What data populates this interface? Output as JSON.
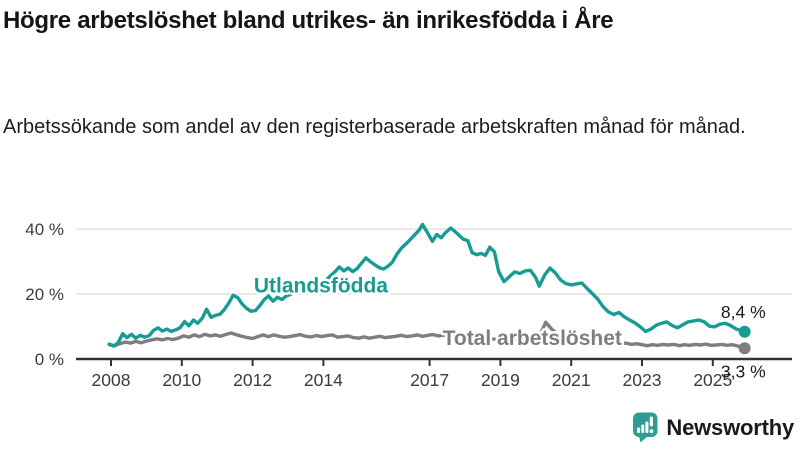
{
  "header": {
    "title": "Högre arbetslöshet bland utrikes- än inrikesfödda i Åre",
    "subtitle": "Arbetssökande som andel av den registerbaserade arbetskraften månad för månad."
  },
  "footer": {
    "brand": "Newsworthy"
  },
  "colors": {
    "accent_teal": "#169C92",
    "line_gray": "#7E7E7E",
    "axis": "#333333",
    "gridline": "#DCDCDC",
    "tick_text": "#3B3B3B",
    "value_text": "#1A1A1A",
    "logo_teal": "#2F9C94"
  },
  "chart_data": {
    "type": "line",
    "title": "Högre arbetslöshet bland utrikes- än inrikesfödda i Åre",
    "subtitle": "Arbetssökande som andel av den registerbaserade arbetskraften månad för månad.",
    "unit": "%",
    "grid": "horizontal",
    "legend_position": "inline-labels-on-chart",
    "xlim": [
      2007.9,
      2026.3
    ],
    "ylim": [
      0,
      44
    ],
    "x_ticks": [
      2008,
      2010,
      2012,
      2014,
      2017,
      2019,
      2021,
      2023,
      2025
    ],
    "y_ticks": [
      {
        "value": 0,
        "label": "0 %"
      },
      {
        "value": 20,
        "label": "20 %"
      },
      {
        "value": 40,
        "label": "40 %"
      }
    ],
    "series": [
      {
        "id": "utlandsfodda",
        "name": "Utlandsfödda",
        "color": "#169C92",
        "end_value": 8.4,
        "end_value_label": "8,4 %",
        "label_pos": {
          "x": 2013.93,
          "y": 20.4
        },
        "points": [
          [
            2007.95,
            4.6
          ],
          [
            2008.08,
            4.0
          ],
          [
            2008.2,
            5.0
          ],
          [
            2008.33,
            7.8
          ],
          [
            2008.45,
            6.6
          ],
          [
            2008.58,
            7.6
          ],
          [
            2008.7,
            6.4
          ],
          [
            2008.83,
            7.3
          ],
          [
            2008.95,
            6.7
          ],
          [
            2009.08,
            7.2
          ],
          [
            2009.2,
            8.8
          ],
          [
            2009.33,
            9.6
          ],
          [
            2009.45,
            8.6
          ],
          [
            2009.58,
            9.2
          ],
          [
            2009.7,
            8.5
          ],
          [
            2009.83,
            9.0
          ],
          [
            2009.95,
            9.6
          ],
          [
            2010.08,
            11.5
          ],
          [
            2010.2,
            10.2
          ],
          [
            2010.33,
            12.0
          ],
          [
            2010.45,
            11.0
          ],
          [
            2010.58,
            12.6
          ],
          [
            2010.7,
            15.3
          ],
          [
            2010.83,
            12.8
          ],
          [
            2010.95,
            13.4
          ],
          [
            2011.08,
            13.8
          ],
          [
            2011.2,
            15.2
          ],
          [
            2011.33,
            17.3
          ],
          [
            2011.45,
            19.6
          ],
          [
            2011.58,
            18.9
          ],
          [
            2011.7,
            17.0
          ],
          [
            2011.83,
            15.6
          ],
          [
            2011.95,
            14.7
          ],
          [
            2012.08,
            14.9
          ],
          [
            2012.2,
            16.4
          ],
          [
            2012.33,
            18.3
          ],
          [
            2012.45,
            19.4
          ],
          [
            2012.58,
            17.8
          ],
          [
            2012.7,
            19.0
          ],
          [
            2012.83,
            18.3
          ],
          [
            2012.95,
            19.4
          ],
          [
            2013.08,
            19.9
          ],
          [
            2013.2,
            21.2
          ],
          [
            2013.33,
            20.3
          ],
          [
            2013.45,
            22.3
          ],
          [
            2013.58,
            21.5
          ],
          [
            2013.7,
            22.8
          ],
          [
            2013.83,
            22.1
          ],
          [
            2013.95,
            23.3
          ],
          [
            2014.08,
            24.3
          ],
          [
            2014.2,
            25.6
          ],
          [
            2014.33,
            26.9
          ],
          [
            2014.45,
            28.3
          ],
          [
            2014.58,
            27.1
          ],
          [
            2014.7,
            28.0
          ],
          [
            2014.83,
            26.9
          ],
          [
            2014.95,
            27.8
          ],
          [
            2015.08,
            29.5
          ],
          [
            2015.2,
            31.1
          ],
          [
            2015.33,
            29.9
          ],
          [
            2015.45,
            29.0
          ],
          [
            2015.58,
            28.1
          ],
          [
            2015.7,
            27.7
          ],
          [
            2015.83,
            28.6
          ],
          [
            2015.95,
            29.8
          ],
          [
            2016.08,
            32.3
          ],
          [
            2016.2,
            34.1
          ],
          [
            2016.33,
            35.4
          ],
          [
            2016.45,
            36.7
          ],
          [
            2016.58,
            38.2
          ],
          [
            2016.7,
            39.6
          ],
          [
            2016.8,
            41.4
          ],
          [
            2016.95,
            38.7
          ],
          [
            2017.08,
            36.2
          ],
          [
            2017.2,
            38.3
          ],
          [
            2017.33,
            37.3
          ],
          [
            2017.45,
            38.9
          ],
          [
            2017.6,
            40.3
          ],
          [
            2017.7,
            39.4
          ],
          [
            2017.83,
            38.1
          ],
          [
            2017.95,
            36.9
          ],
          [
            2018.08,
            36.4
          ],
          [
            2018.2,
            32.7
          ],
          [
            2018.33,
            32.1
          ],
          [
            2018.45,
            32.5
          ],
          [
            2018.58,
            31.9
          ],
          [
            2018.7,
            34.4
          ],
          [
            2018.83,
            33.0
          ],
          [
            2018.95,
            27.0
          ],
          [
            2019.1,
            23.8
          ],
          [
            2019.25,
            25.3
          ],
          [
            2019.4,
            26.8
          ],
          [
            2019.55,
            26.3
          ],
          [
            2019.7,
            27.1
          ],
          [
            2019.85,
            27.3
          ],
          [
            2020.0,
            25.0
          ],
          [
            2020.1,
            22.4
          ],
          [
            2020.25,
            25.8
          ],
          [
            2020.4,
            28.0
          ],
          [
            2020.55,
            26.5
          ],
          [
            2020.7,
            24.3
          ],
          [
            2020.85,
            23.2
          ],
          [
            2021.0,
            22.8
          ],
          [
            2021.15,
            23.1
          ],
          [
            2021.3,
            23.4
          ],
          [
            2021.45,
            21.7
          ],
          [
            2021.6,
            20.1
          ],
          [
            2021.75,
            18.4
          ],
          [
            2021.9,
            16.1
          ],
          [
            2022.05,
            14.5
          ],
          [
            2022.2,
            13.7
          ],
          [
            2022.35,
            14.3
          ],
          [
            2022.5,
            13.0
          ],
          [
            2022.65,
            12.0
          ],
          [
            2022.8,
            11.1
          ],
          [
            2022.95,
            9.9
          ],
          [
            2023.1,
            8.5
          ],
          [
            2023.25,
            9.2
          ],
          [
            2023.4,
            10.4
          ],
          [
            2023.55,
            11.0
          ],
          [
            2023.7,
            11.4
          ],
          [
            2023.85,
            10.3
          ],
          [
            2024.0,
            9.6
          ],
          [
            2024.15,
            10.5
          ],
          [
            2024.3,
            11.4
          ],
          [
            2024.45,
            11.7
          ],
          [
            2024.6,
            12.0
          ],
          [
            2024.75,
            11.5
          ],
          [
            2024.9,
            10.1
          ],
          [
            2025.05,
            9.9
          ],
          [
            2025.2,
            10.7
          ],
          [
            2025.35,
            11.0
          ],
          [
            2025.5,
            10.3
          ],
          [
            2025.65,
            9.3
          ],
          [
            2025.78,
            8.8
          ],
          [
            2025.9,
            8.4
          ]
        ]
      },
      {
        "id": "total",
        "name": "Total arbetslöshet",
        "color": "#7E7E7E",
        "end_value": 3.3,
        "end_value_label": "3,3 %",
        "label_pos": {
          "x": 2019.9,
          "y": 4.3
        },
        "points": [
          [
            2007.95,
            4.4
          ],
          [
            2008.1,
            4.1
          ],
          [
            2008.25,
            4.7
          ],
          [
            2008.4,
            5.2
          ],
          [
            2008.55,
            4.9
          ],
          [
            2008.7,
            5.4
          ],
          [
            2008.85,
            5.0
          ],
          [
            2009.0,
            5.5
          ],
          [
            2009.15,
            5.9
          ],
          [
            2009.3,
            6.2
          ],
          [
            2009.45,
            5.9
          ],
          [
            2009.6,
            6.3
          ],
          [
            2009.75,
            6.0
          ],
          [
            2009.9,
            6.4
          ],
          [
            2010.05,
            7.1
          ],
          [
            2010.2,
            6.7
          ],
          [
            2010.35,
            7.4
          ],
          [
            2010.5,
            6.9
          ],
          [
            2010.65,
            7.6
          ],
          [
            2010.8,
            7.1
          ],
          [
            2010.95,
            7.4
          ],
          [
            2011.1,
            7.0
          ],
          [
            2011.25,
            7.6
          ],
          [
            2011.4,
            8.0
          ],
          [
            2011.55,
            7.4
          ],
          [
            2011.7,
            7.0
          ],
          [
            2011.85,
            6.6
          ],
          [
            2012.0,
            6.3
          ],
          [
            2012.15,
            6.9
          ],
          [
            2012.3,
            7.4
          ],
          [
            2012.45,
            6.9
          ],
          [
            2012.6,
            7.4
          ],
          [
            2012.75,
            7.0
          ],
          [
            2012.9,
            6.7
          ],
          [
            2013.05,
            6.9
          ],
          [
            2013.2,
            7.2
          ],
          [
            2013.35,
            7.5
          ],
          [
            2013.5,
            7.0
          ],
          [
            2013.65,
            6.8
          ],
          [
            2013.8,
            7.2
          ],
          [
            2013.95,
            6.9
          ],
          [
            2014.1,
            7.2
          ],
          [
            2014.25,
            7.4
          ],
          [
            2014.4,
            6.7
          ],
          [
            2014.55,
            6.9
          ],
          [
            2014.7,
            7.1
          ],
          [
            2014.85,
            6.6
          ],
          [
            2015.0,
            6.4
          ],
          [
            2015.15,
            6.8
          ],
          [
            2015.3,
            6.4
          ],
          [
            2015.45,
            6.7
          ],
          [
            2015.6,
            7.0
          ],
          [
            2015.75,
            6.6
          ],
          [
            2015.9,
            6.8
          ],
          [
            2016.05,
            7.0
          ],
          [
            2016.2,
            7.3
          ],
          [
            2016.35,
            6.9
          ],
          [
            2016.5,
            7.1
          ],
          [
            2016.65,
            7.4
          ],
          [
            2016.8,
            7.0
          ],
          [
            2016.95,
            7.3
          ],
          [
            2017.1,
            7.5
          ],
          [
            2017.25,
            7.1
          ],
          [
            2017.4,
            7.4
          ],
          [
            2017.55,
            7.0
          ],
          [
            2017.7,
            6.9
          ],
          [
            2017.85,
            7.2
          ],
          [
            2018.0,
            6.9
          ],
          [
            2018.15,
            6.4
          ],
          [
            2018.3,
            6.6
          ],
          [
            2018.45,
            6.3
          ],
          [
            2018.6,
            6.6
          ],
          [
            2018.75,
            6.2
          ],
          [
            2018.9,
            6.0
          ],
          [
            2019.05,
            5.9
          ],
          [
            2019.2,
            5.6
          ],
          [
            2019.35,
            6.1
          ],
          [
            2019.5,
            5.9
          ],
          [
            2019.65,
            6.2
          ],
          [
            2019.8,
            6.0
          ],
          [
            2019.95,
            6.3
          ],
          [
            2020.1,
            6.9
          ],
          [
            2020.28,
            11.3
          ],
          [
            2020.45,
            9.2
          ],
          [
            2020.6,
            7.8
          ],
          [
            2020.75,
            7.2
          ],
          [
            2020.9,
            6.9
          ],
          [
            2021.05,
            6.6
          ],
          [
            2021.2,
            6.3
          ],
          [
            2021.35,
            6.0
          ],
          [
            2021.5,
            5.6
          ],
          [
            2021.65,
            5.4
          ],
          [
            2021.8,
            5.2
          ],
          [
            2021.95,
            5.0
          ],
          [
            2022.1,
            4.9
          ],
          [
            2022.25,
            5.1
          ],
          [
            2022.4,
            4.7
          ],
          [
            2022.55,
            4.9
          ],
          [
            2022.7,
            4.5
          ],
          [
            2022.85,
            4.7
          ],
          [
            2023.0,
            4.4
          ],
          [
            2023.15,
            4.1
          ],
          [
            2023.3,
            4.4
          ],
          [
            2023.45,
            4.2
          ],
          [
            2023.6,
            4.5
          ],
          [
            2023.75,
            4.3
          ],
          [
            2023.9,
            4.5
          ],
          [
            2024.05,
            4.1
          ],
          [
            2024.2,
            4.4
          ],
          [
            2024.35,
            4.2
          ],
          [
            2024.5,
            4.5
          ],
          [
            2024.65,
            4.3
          ],
          [
            2024.8,
            4.6
          ],
          [
            2024.95,
            4.2
          ],
          [
            2025.1,
            4.3
          ],
          [
            2025.25,
            4.5
          ],
          [
            2025.4,
            4.2
          ],
          [
            2025.55,
            4.4
          ],
          [
            2025.7,
            4.0
          ],
          [
            2025.8,
            3.7
          ],
          [
            2025.9,
            3.3
          ]
        ]
      }
    ]
  }
}
